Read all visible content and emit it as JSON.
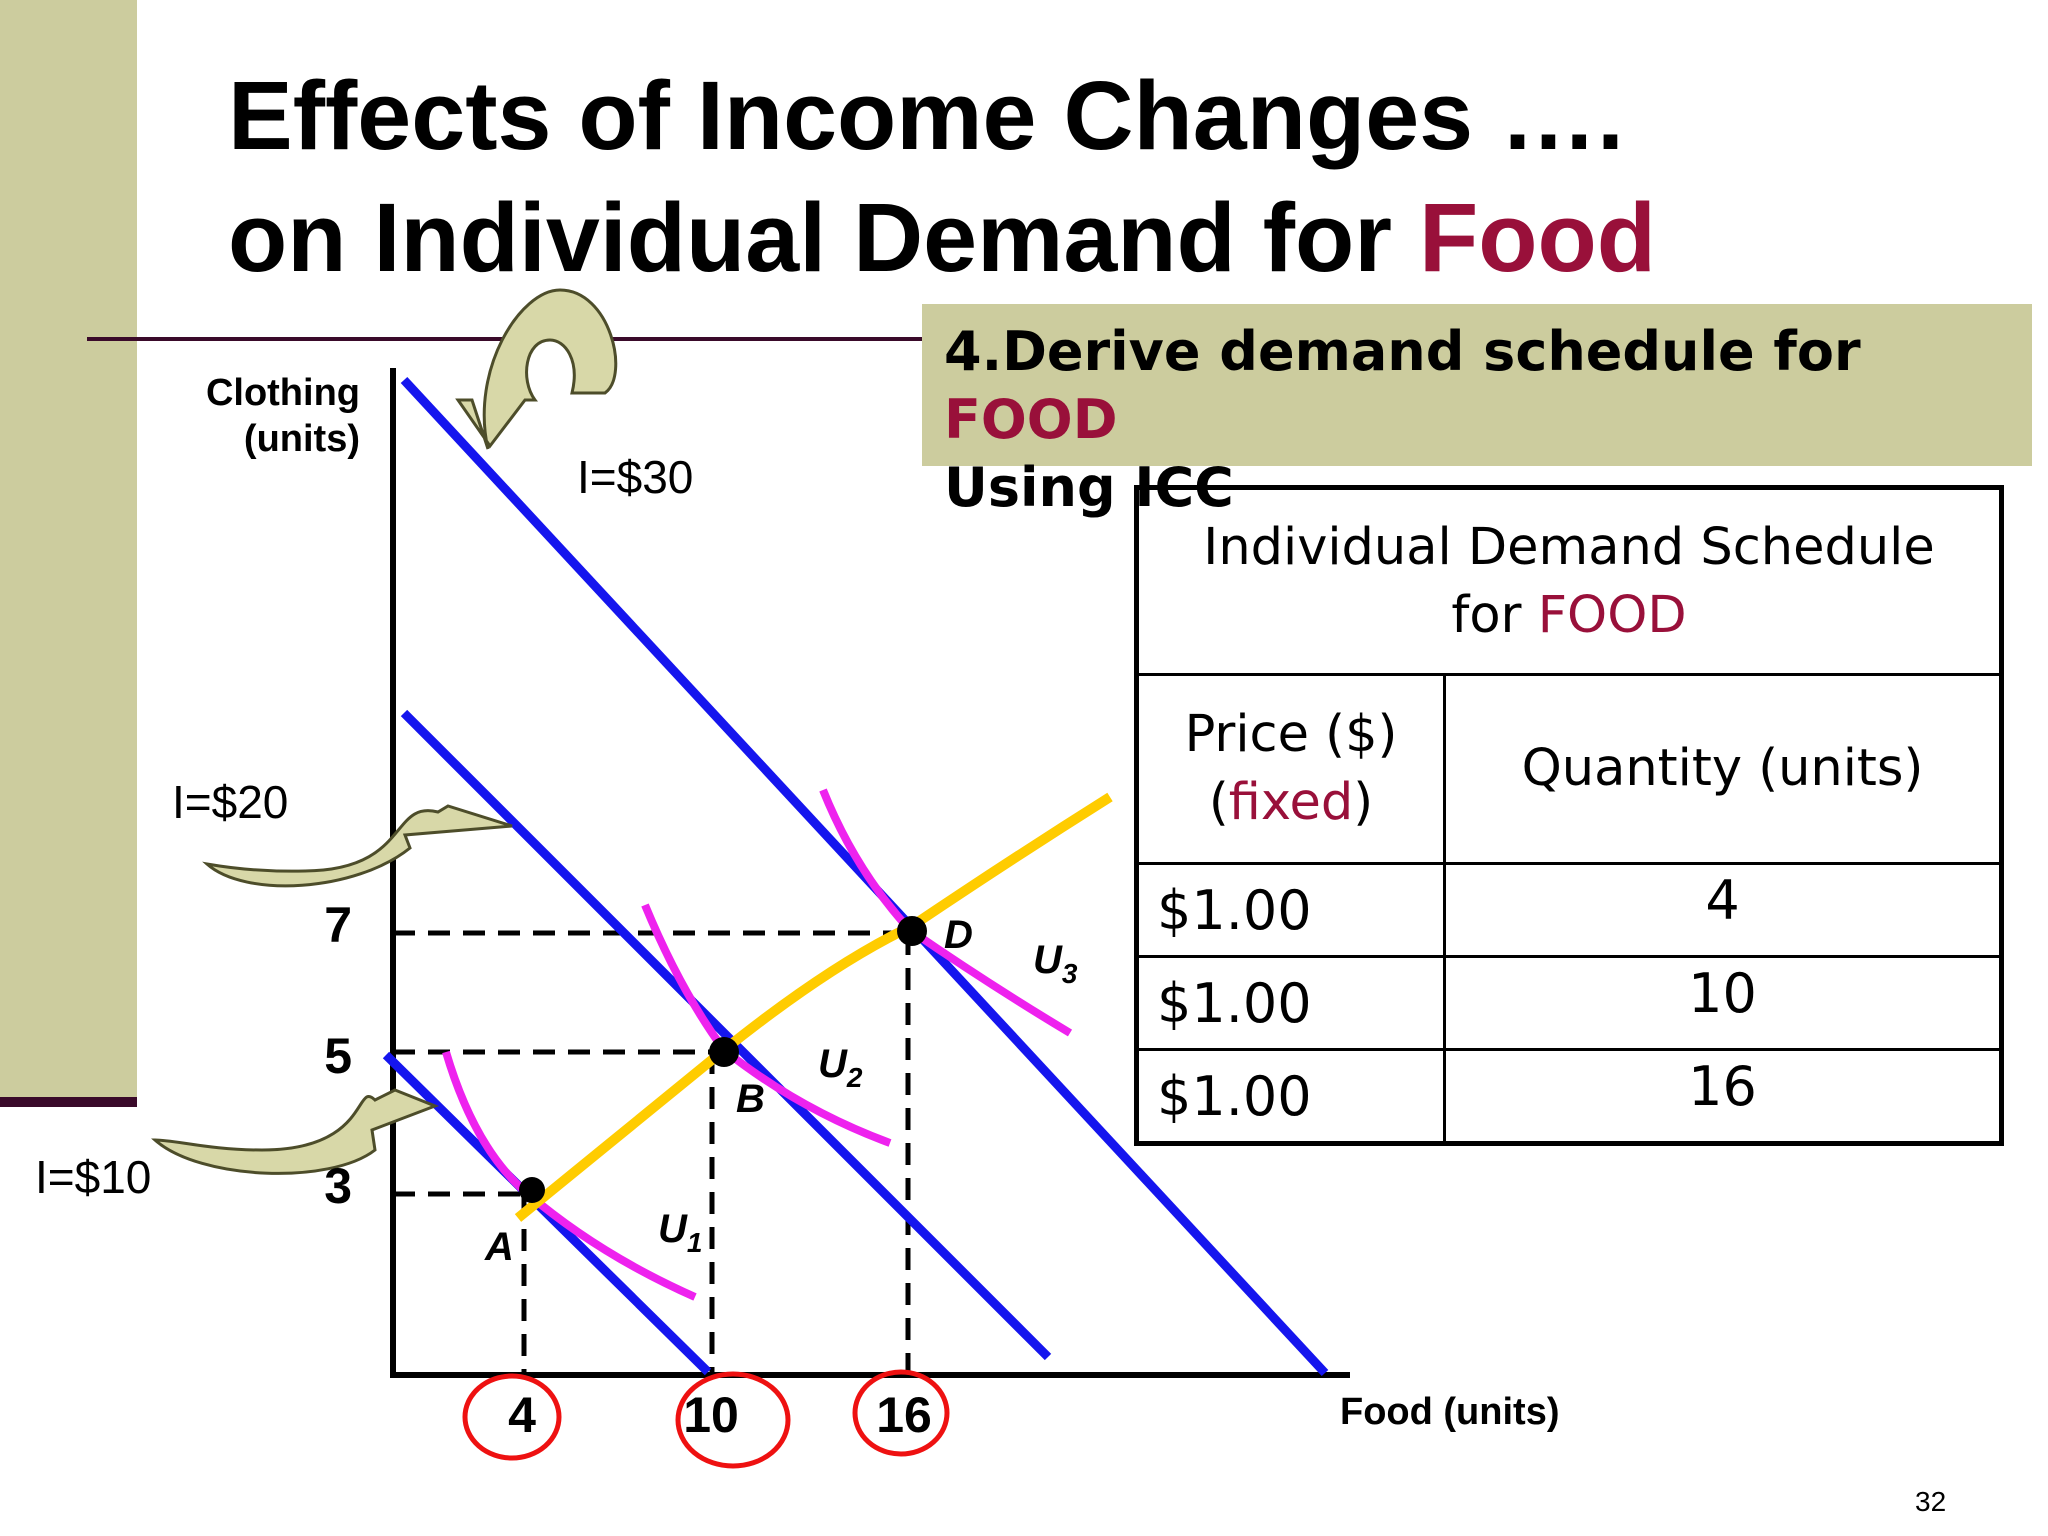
{
  "slide": {
    "title_line1": "Effects of Income Changes ….",
    "title_line2_prefix": "on Individual Demand for ",
    "title_line2_accent": "Food",
    "page_number": "32",
    "colors": {
      "sidebar": "#cccc9e",
      "accent": "#99103a",
      "budget_line": "#1515ee",
      "indifference_curve": "#ee22ee",
      "icc": "#ffcc00",
      "highlight_circle": "#ee1111",
      "arrow_fill": "#d8d8a8"
    }
  },
  "step_box": {
    "line1_prefix": "4.Derive demand schedule for ",
    "line1_accent": "FOOD",
    "line2": "Using ICC"
  },
  "diagram": {
    "y_axis_label_line1": "Clothing",
    "y_axis_label_line2": "(units)",
    "x_axis_label": "Food (units)",
    "y_ticks": [
      "7",
      "5",
      "3"
    ],
    "x_ticks": [
      "4",
      "10",
      "16"
    ],
    "budget_lines": [
      {
        "label": "I=$10",
        "clothing_intercept": 10,
        "food_intercept": 10
      },
      {
        "label": "I=$20",
        "clothing_intercept": 20,
        "food_intercept": 20
      },
      {
        "label": "I=$30",
        "clothing_intercept": 30,
        "food_intercept": 30
      }
    ],
    "indifference_curves": [
      "U1",
      "U2",
      "U3"
    ],
    "points": [
      {
        "label": "A",
        "food": 4,
        "clothing": 3
      },
      {
        "label": "B",
        "food": 10,
        "clothing": 5
      },
      {
        "label": "D",
        "food": 16,
        "clothing": 7
      }
    ],
    "icon_arrows": [
      "curved-arrow-icon",
      "curved-arrow-icon",
      "curved-arrow-icon"
    ]
  },
  "table": {
    "title_line1": "Individual Demand Schedule",
    "title_line2_prefix": "for ",
    "title_line2_accent": "FOOD",
    "price_header_line1": "Price ($)",
    "price_header_open": "(",
    "price_header_accent": "fixed",
    "price_header_close": ")",
    "quantity_header": "Quantity (units)",
    "rows": [
      {
        "price": "$1.00",
        "quantity": "4"
      },
      {
        "price": "$1.00",
        "quantity": "10"
      },
      {
        "price": "$1.00",
        "quantity": "16"
      }
    ]
  }
}
